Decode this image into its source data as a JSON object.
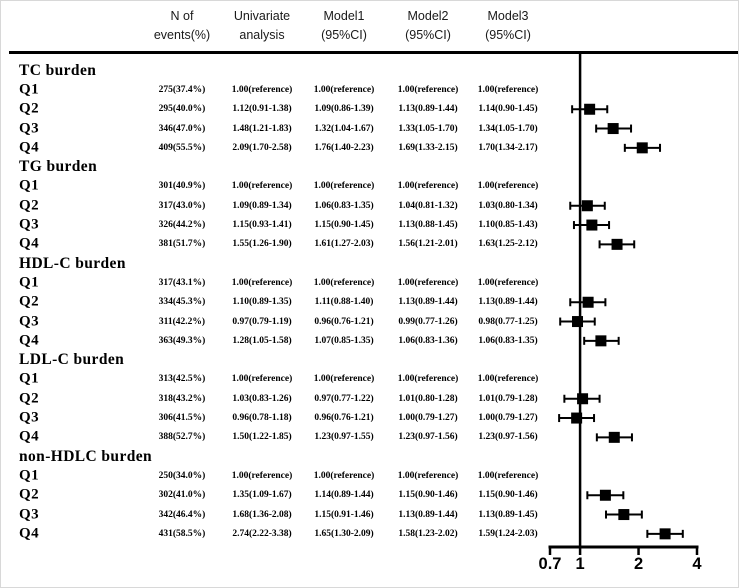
{
  "header": {
    "columns": [
      {
        "line1": "N of",
        "line2": "events(%)"
      },
      {
        "line1": "Univariate",
        "line2": "analysis"
      },
      {
        "line1": "Model1",
        "line2": "(95%CI)"
      },
      {
        "line1": "Model2",
        "line2": "(95%CI)"
      },
      {
        "line1": "Model3",
        "line2": "(95%CI)"
      }
    ]
  },
  "groups": [
    {
      "label": "TC burden",
      "rows": [
        {
          "label": "Q1",
          "n_events": "275(37.4%)",
          "univariate": "1.00(reference)",
          "model1": "1.00(reference)",
          "model2": "1.00(reference)",
          "model3": "1.00(reference)"
        },
        {
          "label": "Q2",
          "n_events": "295(40.0%)",
          "univariate": "1.12(0.91-1.38)",
          "model1": "1.09(0.86-1.39)",
          "model2": "1.13(0.89-1.44)",
          "model3": "1.14(0.90-1.45)"
        },
        {
          "label": "Q3",
          "n_events": "346(47.0%)",
          "univariate": "1.48(1.21-1.83)",
          "model1": "1.32(1.04-1.67)",
          "model2": "1.33(1.05-1.70)",
          "model3": "1.34(1.05-1.70)"
        },
        {
          "label": "Q4",
          "n_events": "409(55.5%)",
          "univariate": "2.09(1.70-2.58)",
          "model1": "1.76(1.40-2.23)",
          "model2": "1.69(1.33-2.15)",
          "model3": "1.70(1.34-2.17)"
        }
      ]
    },
    {
      "label": "TG burden",
      "rows": [
        {
          "label": "Q1",
          "n_events": "301(40.9%)",
          "univariate": "1.00(reference)",
          "model1": "1.00(reference)",
          "model2": "1.00(reference)",
          "model3": "1.00(reference)"
        },
        {
          "label": "Q2",
          "n_events": "317(43.0%)",
          "univariate": "1.09(0.89-1.34)",
          "model1": "1.06(0.83-1.35)",
          "model2": "1.04(0.81-1.32)",
          "model3": "1.03(0.80-1.34)"
        },
        {
          "label": "Q3",
          "n_events": "326(44.2%)",
          "univariate": "1.15(0.93-1.41)",
          "model1": "1.15(0.90-1.45)",
          "model2": "1.13(0.88-1.45)",
          "model3": "1.10(0.85-1.43)"
        },
        {
          "label": "Q4",
          "n_events": "381(51.7%)",
          "univariate": "1.55(1.26-1.90)",
          "model1": "1.61(1.27-2.03)",
          "model2": "1.56(1.21-2.01)",
          "model3": "1.63(1.25-2.12)"
        }
      ]
    },
    {
      "label": "HDL-C burden",
      "rows": [
        {
          "label": "Q1",
          "n_events": "317(43.1%)",
          "univariate": "1.00(reference)",
          "model1": "1.00(reference)",
          "model2": "1.00(reference)",
          "model3": "1.00(reference)"
        },
        {
          "label": "Q2",
          "n_events": "334(45.3%)",
          "univariate": "1.10(0.89-1.35)",
          "model1": "1.11(0.88-1.40)",
          "model2": "1.13(0.89-1.44)",
          "model3": "1.13(0.89-1.44)"
        },
        {
          "label": "Q3",
          "n_events": "311(42.2%)",
          "univariate": "0.97(0.79-1.19)",
          "model1": "0.96(0.76-1.21)",
          "model2": "0.99(0.77-1.26)",
          "model3": "0.98(0.77-1.25)"
        },
        {
          "label": "Q4",
          "n_events": "363(49.3%)",
          "univariate": "1.28(1.05-1.58)",
          "model1": "1.07(0.85-1.35)",
          "model2": "1.06(0.83-1.36)",
          "model3": "1.06(0.83-1.35)"
        }
      ]
    },
    {
      "label": "LDL-C burden",
      "rows": [
        {
          "label": "Q1",
          "n_events": "313(42.5%)",
          "univariate": "1.00(reference)",
          "model1": "1.00(reference)",
          "model2": "1.00(reference)",
          "model3": "1.00(reference)"
        },
        {
          "label": "Q2",
          "n_events": "318(43.2%)",
          "univariate": "1.03(0.83-1.26)",
          "model1": "0.97(0.77-1.22)",
          "model2": "1.01(0.80-1.28)",
          "model3": "1.01(0.79-1.28)"
        },
        {
          "label": "Q3",
          "n_events": "306(41.5%)",
          "univariate": "0.96(0.78-1.18)",
          "model1": "0.96(0.76-1.21)",
          "model2": "1.00(0.79-1.27)",
          "model3": "1.00(0.79-1.27)"
        },
        {
          "label": "Q4",
          "n_events": "388(52.7%)",
          "univariate": "1.50(1.22-1.85)",
          "model1": "1.23(0.97-1.55)",
          "model2": "1.23(0.97-1.56)",
          "model3": "1.23(0.97-1.56)"
        }
      ]
    },
    {
      "label": "non-HDLC burden",
      "rows": [
        {
          "label": "Q1",
          "n_events": "250(34.0%)",
          "univariate": "1.00(reference)",
          "model1": "1.00(reference)",
          "model2": "1.00(reference)",
          "model3": "1.00(reference)"
        },
        {
          "label": "Q2",
          "n_events": "302(41.0%)",
          "univariate": "1.35(1.09-1.67)",
          "model1": "1.14(0.89-1.44)",
          "model2": "1.15(0.90-1.46)",
          "model3": "1.15(0.90-1.46)"
        },
        {
          "label": "Q3",
          "n_events": "342(46.4%)",
          "univariate": "1.68(1.36-2.08)",
          "model1": "1.15(0.91-1.46)",
          "model2": "1.13(0.89-1.44)",
          "model3": "1.13(0.89-1.45)"
        },
        {
          "label": "Q4",
          "n_events": "431(58.5%)",
          "univariate": "2.74(2.22-3.38)",
          "model1": "1.65(1.30-2.09)",
          "model2": "1.58(1.23-2.02)",
          "model3": "1.59(1.24-2.03)"
        }
      ]
    }
  ],
  "chart_data": {
    "type": "scatter",
    "subtype": "forest-plot",
    "plotted_series": "Univariate analysis",
    "xscale": "log",
    "xlim": [
      0.7,
      4
    ],
    "xticks": [
      "0.7",
      "1",
      "2",
      "4"
    ],
    "reference_line_x": 1,
    "marker_color": "#000000",
    "points": [
      {
        "group": "TC burden",
        "label": "Q2",
        "est": 1.12,
        "lo": 0.91,
        "hi": 1.38
      },
      {
        "group": "TC burden",
        "label": "Q3",
        "est": 1.48,
        "lo": 1.21,
        "hi": 1.83
      },
      {
        "group": "TC burden",
        "label": "Q4",
        "est": 2.09,
        "lo": 1.7,
        "hi": 2.58
      },
      {
        "group": "TG burden",
        "label": "Q2",
        "est": 1.09,
        "lo": 0.89,
        "hi": 1.34
      },
      {
        "group": "TG burden",
        "label": "Q3",
        "est": 1.15,
        "lo": 0.93,
        "hi": 1.41
      },
      {
        "group": "TG burden",
        "label": "Q4",
        "est": 1.55,
        "lo": 1.26,
        "hi": 1.9
      },
      {
        "group": "HDL-C burden",
        "label": "Q2",
        "est": 1.1,
        "lo": 0.89,
        "hi": 1.35
      },
      {
        "group": "HDL-C burden",
        "label": "Q3",
        "est": 0.97,
        "lo": 0.79,
        "hi": 1.19
      },
      {
        "group": "HDL-C burden",
        "label": "Q4",
        "est": 1.28,
        "lo": 1.05,
        "hi": 1.58
      },
      {
        "group": "LDL-C burden",
        "label": "Q2",
        "est": 1.03,
        "lo": 0.83,
        "hi": 1.26
      },
      {
        "group": "LDL-C burden",
        "label": "Q3",
        "est": 0.96,
        "lo": 0.78,
        "hi": 1.18
      },
      {
        "group": "LDL-C burden",
        "label": "Q4",
        "est": 1.5,
        "lo": 1.22,
        "hi": 1.85
      },
      {
        "group": "non-HDLC burden",
        "label": "Q2",
        "est": 1.35,
        "lo": 1.09,
        "hi": 1.67
      },
      {
        "group": "non-HDLC burden",
        "label": "Q3",
        "est": 1.68,
        "lo": 1.36,
        "hi": 2.08
      },
      {
        "group": "non-HDLC burden",
        "label": "Q4",
        "est": 2.74,
        "lo": 2.22,
        "hi": 3.38
      }
    ]
  }
}
